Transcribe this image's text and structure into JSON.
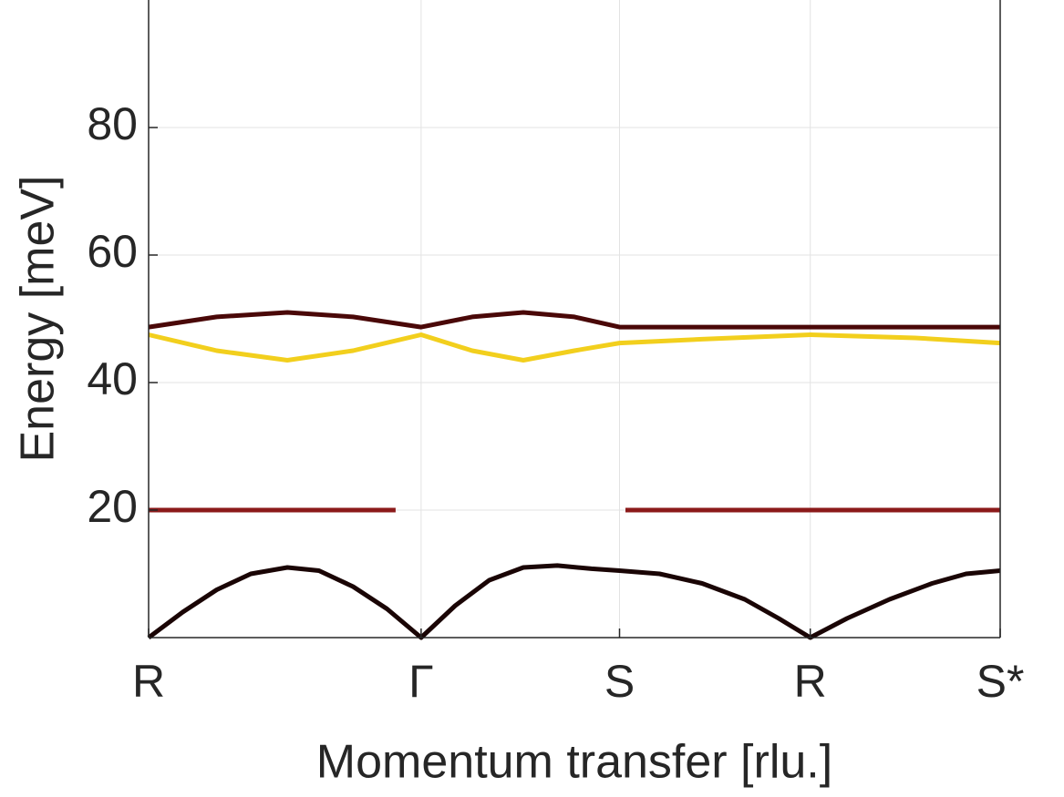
{
  "chart_data": {
    "type": "line",
    "xlabel": "Momentum transfer [rlu.]",
    "ylabel": "Energy [meV]",
    "xlim": [
      0,
      1
    ],
    "ylim": [
      0,
      100
    ],
    "xticks": [
      {
        "value": 0,
        "label": "R"
      },
      {
        "value": 0.32,
        "label": "Γ"
      },
      {
        "value": 0.553,
        "label": "S"
      },
      {
        "value": 0.777,
        "label": "R"
      },
      {
        "value": 1,
        "label": "S*"
      }
    ],
    "yticks": [
      20,
      40,
      60,
      80
    ],
    "grid": true,
    "series": [
      {
        "color": "#1a0505",
        "x": [
          0,
          0.04,
          0.08,
          0.12,
          0.163,
          0.2,
          0.24,
          0.28,
          0.32,
          0.36,
          0.4,
          0.44,
          0.48,
          0.52,
          0.553,
          0.6,
          0.65,
          0.7,
          0.74,
          0.777,
          0.82,
          0.87,
          0.92,
          0.96,
          1
        ],
        "values": [
          0,
          4,
          7.5,
          10,
          11,
          10.5,
          8,
          4.5,
          0,
          5,
          9,
          11,
          11.3,
          10.8,
          10.5,
          10,
          8.5,
          6,
          3,
          0,
          3,
          6,
          8.5,
          10,
          10.5
        ]
      },
      {
        "color": "#8b1a1a",
        "x": [
          0,
          0.29,
          0.42,
          0.56,
          1
        ],
        "values": [
          20,
          20,
          null,
          20,
          20
        ]
      },
      {
        "color": "#4a0808",
        "x": [
          0,
          0.08,
          0.163,
          0.24,
          0.32,
          0.38,
          0.44,
          0.5,
          0.553,
          0.65,
          0.777,
          0.9,
          1
        ],
        "values": [
          48.7,
          50.3,
          51,
          50.3,
          48.7,
          50.3,
          51,
          50.3,
          48.7,
          48.7,
          48.7,
          48.7,
          48.7
        ]
      },
      {
        "color": "#f2cf1d",
        "x": [
          0,
          0.08,
          0.163,
          0.24,
          0.32,
          0.38,
          0.44,
          0.5,
          0.553,
          0.65,
          0.777,
          0.9,
          1
        ],
        "values": [
          47.5,
          45,
          43.5,
          45,
          47.5,
          45,
          43.5,
          45,
          46.2,
          46.8,
          47.5,
          47,
          46.2
        ]
      }
    ]
  }
}
